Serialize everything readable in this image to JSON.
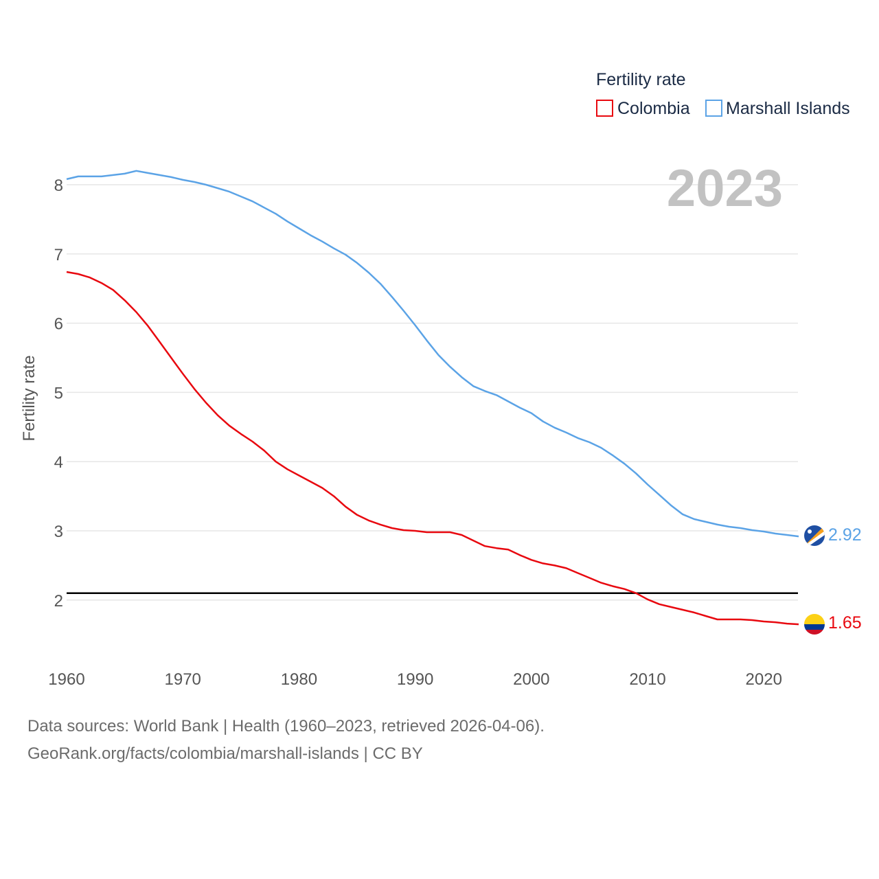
{
  "chart_data": {
    "type": "line",
    "title": "",
    "xlabel": "",
    "ylabel": "Fertility rate",
    "legend_title": "Fertility rate",
    "legend_placement": "top-right",
    "year_label": "2023",
    "xlim": [
      1960,
      2023
    ],
    "ylim": [
      1.3,
      8.3
    ],
    "x_ticks": [
      1960,
      1970,
      1980,
      1990,
      2000,
      2010,
      2020
    ],
    "y_ticks": [
      2,
      3,
      4,
      5,
      6,
      7,
      8
    ],
    "reference_line": {
      "value": 2.1,
      "color": "#000000"
    },
    "x": [
      1960,
      1961,
      1962,
      1963,
      1964,
      1965,
      1966,
      1967,
      1968,
      1969,
      1970,
      1971,
      1972,
      1973,
      1974,
      1975,
      1976,
      1977,
      1978,
      1979,
      1980,
      1981,
      1982,
      1983,
      1984,
      1985,
      1986,
      1987,
      1988,
      1989,
      1990,
      1991,
      1992,
      1993,
      1994,
      1995,
      1996,
      1997,
      1998,
      1999,
      2000,
      2001,
      2002,
      2003,
      2004,
      2005,
      2006,
      2007,
      2008,
      2009,
      2010,
      2011,
      2012,
      2013,
      2014,
      2015,
      2016,
      2017,
      2018,
      2019,
      2020,
      2021,
      2022,
      2023
    ],
    "series": [
      {
        "name": "Colombia",
        "color": "#e8080f",
        "end_label": "1.65",
        "values": [
          6.74,
          6.71,
          6.66,
          6.58,
          6.48,
          6.33,
          6.16,
          5.96,
          5.73,
          5.5,
          5.27,
          5.05,
          4.85,
          4.67,
          4.52,
          4.4,
          4.29,
          4.16,
          4.0,
          3.89,
          3.8,
          3.71,
          3.62,
          3.5,
          3.35,
          3.23,
          3.15,
          3.09,
          3.04,
          3.01,
          3.0,
          2.98,
          2.98,
          2.98,
          2.94,
          2.86,
          2.78,
          2.75,
          2.73,
          2.65,
          2.58,
          2.53,
          2.5,
          2.46,
          2.39,
          2.32,
          2.25,
          2.2,
          2.16,
          2.1,
          2.01,
          1.94,
          1.9,
          1.86,
          1.82,
          1.77,
          1.72,
          1.72,
          1.72,
          1.71,
          1.69,
          1.68,
          1.66,
          1.65
        ]
      },
      {
        "name": "Marshall Islands",
        "color": "#5ba3e6",
        "end_label": "2.92",
        "values": [
          8.08,
          8.12,
          8.12,
          8.12,
          8.14,
          8.16,
          8.2,
          8.17,
          8.14,
          8.11,
          8.07,
          8.04,
          8.0,
          7.95,
          7.9,
          7.83,
          7.76,
          7.67,
          7.58,
          7.47,
          7.37,
          7.27,
          7.18,
          7.08,
          6.99,
          6.87,
          6.73,
          6.57,
          6.38,
          6.18,
          5.97,
          5.75,
          5.54,
          5.37,
          5.22,
          5.09,
          5.02,
          4.96,
          4.87,
          4.78,
          4.7,
          4.58,
          4.49,
          4.42,
          4.34,
          4.28,
          4.2,
          4.09,
          3.97,
          3.83,
          3.67,
          3.52,
          3.37,
          3.24,
          3.17,
          3.13,
          3.09,
          3.06,
          3.04,
          3.01,
          2.99,
          2.96,
          2.94,
          2.92
        ]
      }
    ]
  },
  "footer": {
    "line1": "Data sources: World Bank | Health (1960–2023, retrieved 2026-04-06).",
    "line2": "GeoRank.org/facts/colombia/marshall-islands | CC BY"
  }
}
